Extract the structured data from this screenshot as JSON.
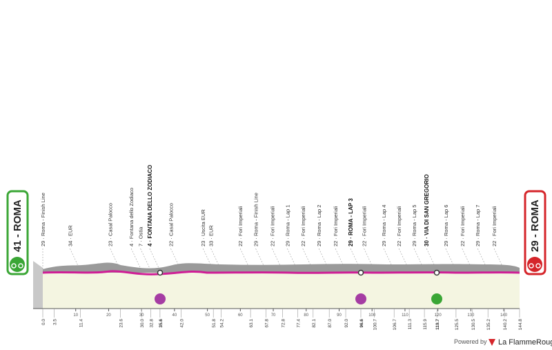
{
  "start": "41 - ROMA",
  "finish": "29 - ROMA",
  "waypoints": [
    {
      "label": "29 · Roma - Finish Line",
      "km": "0.0"
    },
    {
      "label": null,
      "km": "3.5"
    },
    {
      "label": "34 · EUR",
      "km": "11.4"
    },
    {
      "label": "23 · Casal Palocco",
      "km": "23.6"
    },
    {
      "label": "4 · Fontana dello Zodiaco",
      "km": "30.0"
    },
    {
      "label": "7 · Ostia",
      "km": "32.8"
    },
    {
      "label": "4 · FONTANA DELLO ZODIACO",
      "km": "35.6",
      "bold": true
    },
    {
      "label": "22 · Casal Palocco",
      "km": "42.0"
    },
    {
      "label": "23 · Uscita EUR",
      "km": "51.8"
    },
    {
      "label": "33 · EUR",
      "km": "54.2"
    },
    {
      "label": "22 · Fori Imperiali",
      "km": "63.1"
    },
    {
      "label": "29 · Roma - Finish Line",
      "km": "67.8"
    },
    {
      "label": "22 · Fori Imperiali",
      "km": "72.8"
    },
    {
      "label": "29 · Roma - Lap 1",
      "km": "77.4"
    },
    {
      "label": "22 · Fori Imperiali",
      "km": "82.1"
    },
    {
      "label": "29 · Roma - Lap 2",
      "km": "87.0"
    },
    {
      "label": "22 · Fori Imperiali",
      "km": "92.0"
    },
    {
      "label": "29 · ROMA - LAP 3",
      "km": "96.6",
      "bold": true
    },
    {
      "label": "22 · Fori Imperiali",
      "km": "100.7"
    },
    {
      "label": "29 · Roma - Lap 4",
      "km": "106.7"
    },
    {
      "label": "22 · Fori Imperiali",
      "km": "111.3"
    },
    {
      "label": "29 · Roma - Lap 5",
      "km": "115.9"
    },
    {
      "label": "30 · VIA DI SAN GREGORIO",
      "km": "119.7",
      "bold": true
    },
    {
      "label": "29 · Roma - Lap 6",
      "km": "125.5"
    },
    {
      "label": "22 · Fori Imperiali",
      "km": "130.5"
    },
    {
      "label": "29 · Roma - Lap 7",
      "km": "135.2"
    },
    {
      "label": "22 · Fori Imperiali",
      "km": "140.2"
    },
    {
      "label": null,
      "km": "144.8"
    }
  ],
  "axis_ticks": [
    10,
    20,
    30,
    40,
    50,
    60,
    70,
    80,
    90,
    100,
    110,
    120,
    130,
    140
  ],
  "footer": {
    "powered": "Powered by",
    "brand": "La FlammeRouge"
  }
}
